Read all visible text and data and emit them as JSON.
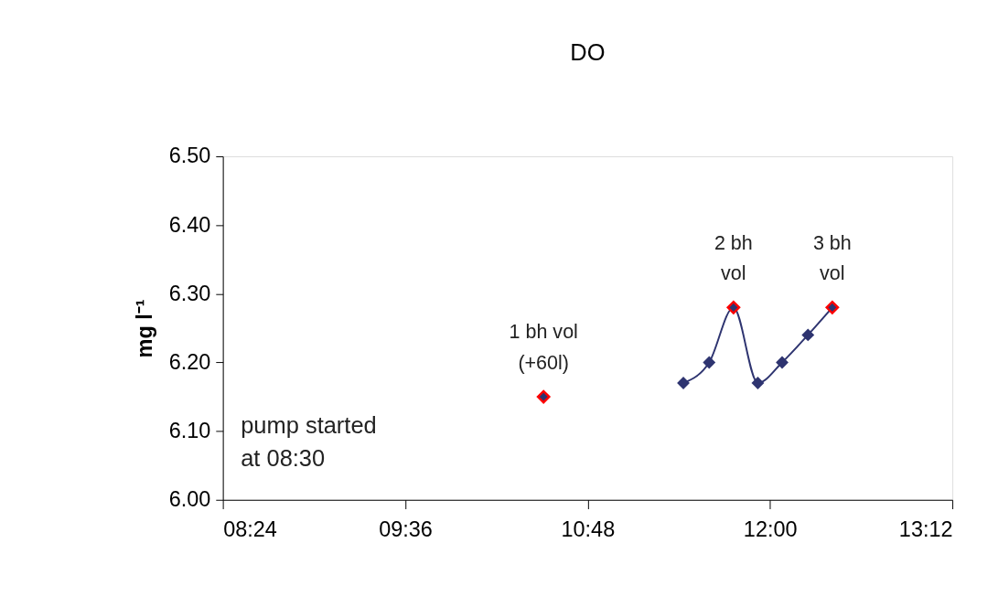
{
  "chart_data": {
    "type": "line",
    "title": "DO",
    "ylabel": "mg l⁻¹",
    "xlim": [
      8.4,
      13.2
    ],
    "xticks": [
      {
        "value": 8.4,
        "label": "08:24"
      },
      {
        "value": 9.6,
        "label": "09:36"
      },
      {
        "value": 10.8,
        "label": "10:48"
      },
      {
        "value": 12,
        "label": "12:00"
      },
      {
        "value": 13.2,
        "label": "13:12"
      }
    ],
    "ylim": [
      6.0,
      6.5
    ],
    "yticks": [
      {
        "value": 6.0,
        "label": "6.00"
      },
      {
        "value": 6.1,
        "label": "6.10"
      },
      {
        "value": 6.2,
        "label": "6.20"
      },
      {
        "value": 6.3,
        "label": "6.30"
      },
      {
        "value": 6.4,
        "label": "6.40"
      },
      {
        "value": 6.5,
        "label": "6.50"
      }
    ],
    "series": [
      {
        "type": "line",
        "color": "#2e3470",
        "x": [
          11.43,
          11.6,
          11.76,
          11.92,
          12.08,
          12.25,
          12.41
        ],
        "values": [
          6.17,
          6.2,
          6.28,
          6.17,
          6.2,
          6.24,
          6.28
        ]
      },
      {
        "type": "scatter",
        "color": "#ff0000",
        "x": [
          10.51,
          11.76,
          12.41
        ],
        "values": [
          6.15,
          6.28,
          6.28
        ]
      }
    ],
    "marker": "diamond",
    "grid": false,
    "annotations": [
      {
        "text": "1 bh vol\n(+60l)",
        "x": 10.51,
        "y": 6.15
      },
      {
        "text": "2 bh\nvol",
        "x": 11.76,
        "y": 6.28
      },
      {
        "text": "3  bh\nvol",
        "x": 12.41,
        "y": 6.28
      },
      "pump started\nat 08:30"
    ]
  }
}
